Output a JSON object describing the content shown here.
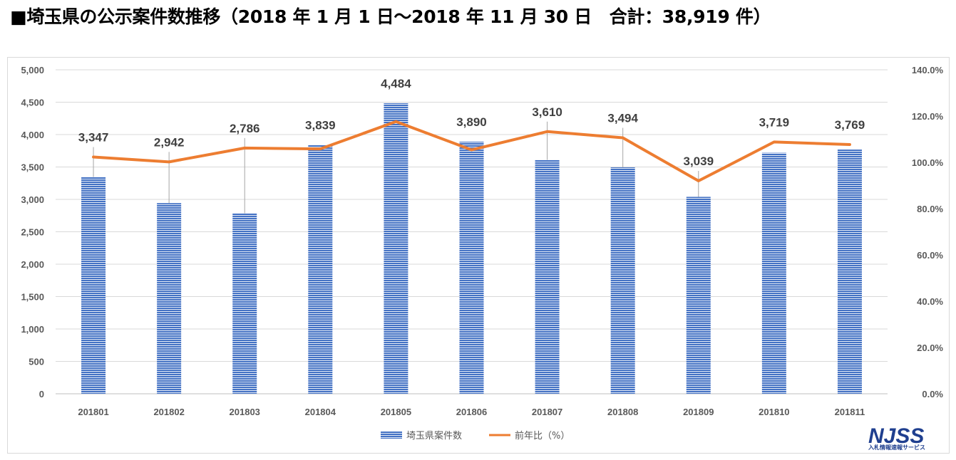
{
  "title": "■埼玉県の公示案件数推移（2018 年 1 月 1 日～2018 年 11 月 30 日　合計：38,919 件）",
  "colors": {
    "bar": "#4472c4",
    "bar_stripe": "#ffffff",
    "line": "#ed7d31",
    "grid": "#d9d9d9",
    "text": "#595959"
  },
  "logo": {
    "main": "NJSS",
    "sub": "入札情報速報サービス"
  },
  "chart_data": {
    "type": "bar",
    "categories": [
      "201801",
      "201802",
      "201803",
      "201804",
      "201805",
      "201806",
      "201807",
      "201808",
      "201809",
      "201810",
      "201811"
    ],
    "series": [
      {
        "name": "埼玉県案件数",
        "type": "bar",
        "axis": "left",
        "values": [
          3347,
          2942,
          2786,
          3839,
          4484,
          3890,
          3610,
          3494,
          3039,
          3719,
          3769
        ],
        "labels": [
          "3,347",
          "2,942",
          "2,786",
          "3,839",
          "4,484",
          "3,890",
          "3,610",
          "3,494",
          "3,039",
          "3,719",
          "3,769"
        ]
      },
      {
        "name": "前年比（%）",
        "type": "line",
        "axis": "right",
        "values": [
          102.3,
          100.2,
          106.2,
          105.8,
          117.6,
          105.4,
          113.3,
          110.6,
          92.0,
          108.8,
          107.7
        ]
      }
    ],
    "y_left": {
      "min": 0,
      "max": 5000,
      "ticks": [
        "0",
        "500",
        "1,000",
        "1,500",
        "2,000",
        "2,500",
        "3,000",
        "3,500",
        "4,000",
        "4,500",
        "5,000"
      ]
    },
    "y_right": {
      "min": 0,
      "max": 140,
      "ticks": [
        "0.0%",
        "20.0%",
        "40.0%",
        "60.0%",
        "80.0%",
        "100.0%",
        "120.0%",
        "140.0%"
      ]
    },
    "grid": true,
    "legend_position": "bottom"
  }
}
